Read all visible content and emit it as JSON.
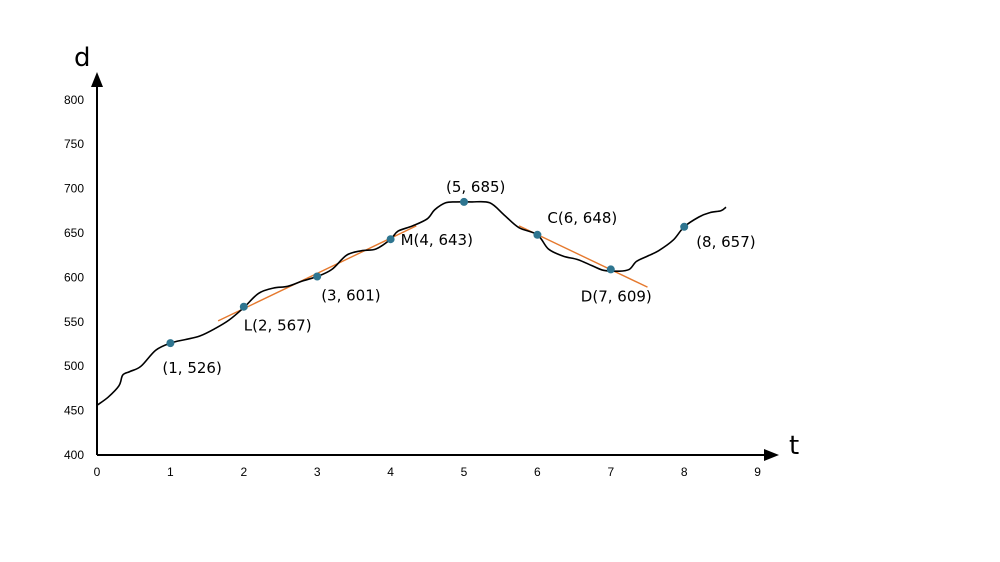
{
  "chart_data": {
    "type": "line",
    "title": "",
    "xlabel": "t",
    "ylabel": "d",
    "xlim": [
      0,
      9
    ],
    "ylim": [
      400,
      800
    ],
    "x_ticks": [
      "0",
      "1",
      "2",
      "3",
      "4",
      "5",
      "6",
      "7",
      "8",
      "9"
    ],
    "y_ticks": [
      "400",
      "450",
      "500",
      "550",
      "600",
      "650",
      "700",
      "750",
      "800"
    ],
    "grid": false,
    "colors": {
      "curve": "#000000",
      "point": "#2e7590",
      "secant": "#e5792e"
    },
    "curve": [
      [
        0,
        456
      ],
      [
        0.15,
        465
      ],
      [
        0.3,
        478
      ],
      [
        0.35,
        490
      ],
      [
        0.45,
        494
      ],
      [
        0.6,
        500
      ],
      [
        0.8,
        518
      ],
      [
        1.0,
        526
      ],
      [
        1.2,
        530
      ],
      [
        1.4,
        534
      ],
      [
        1.6,
        542
      ],
      [
        1.8,
        552
      ],
      [
        2.0,
        566
      ],
      [
        2.2,
        582
      ],
      [
        2.4,
        588
      ],
      [
        2.6,
        590
      ],
      [
        2.8,
        596
      ],
      [
        3.0,
        601
      ],
      [
        3.2,
        609
      ],
      [
        3.4,
        625
      ],
      [
        3.6,
        630
      ],
      [
        3.8,
        632
      ],
      [
        4.0,
        643
      ],
      [
        4.1,
        652
      ],
      [
        4.3,
        658
      ],
      [
        4.5,
        666
      ],
      [
        4.6,
        676
      ],
      [
        4.75,
        684
      ],
      [
        4.9,
        685
      ],
      [
        5.1,
        685
      ],
      [
        5.35,
        684
      ],
      [
        5.55,
        670
      ],
      [
        5.75,
        656
      ],
      [
        6.0,
        648
      ],
      [
        6.15,
        632
      ],
      [
        6.35,
        624
      ],
      [
        6.55,
        620
      ],
      [
        6.75,
        613
      ],
      [
        6.9,
        608
      ],
      [
        7.1,
        607
      ],
      [
        7.25,
        609
      ],
      [
        7.35,
        618
      ],
      [
        7.5,
        624
      ],
      [
        7.65,
        630
      ],
      [
        7.85,
        642
      ],
      [
        8.0,
        657
      ],
      [
        8.2,
        668
      ],
      [
        8.35,
        673
      ],
      [
        8.5,
        675
      ],
      [
        8.57,
        679
      ]
    ],
    "points": [
      {
        "x": 1,
        "y": 526,
        "label": "(1, 526)"
      },
      {
        "x": 2,
        "y": 567,
        "label": "L(2, 567)"
      },
      {
        "x": 3,
        "y": 601,
        "label": "(3, 601)"
      },
      {
        "x": 4,
        "y": 643,
        "label": "M(4, 643)"
      },
      {
        "x": 5,
        "y": 685,
        "label": "(5, 685)"
      },
      {
        "x": 6,
        "y": 648,
        "label": "C(6, 648)"
      },
      {
        "x": 7,
        "y": 609,
        "label": "D(7, 609)"
      },
      {
        "x": 8,
        "y": 657,
        "label": "(8, 657)"
      }
    ],
    "secant_lines": [
      {
        "from": [
          1.65,
          551
        ],
        "to": [
          4.35,
          658
        ]
      },
      {
        "from": [
          5.75,
          658
        ],
        "to": [
          7.5,
          589
        ]
      }
    ]
  }
}
